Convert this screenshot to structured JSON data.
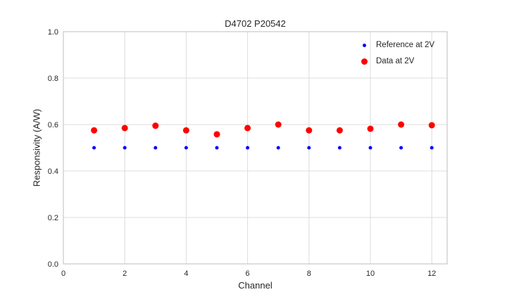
{
  "chart_data": {
    "type": "scatter",
    "title": "D4702 P20542",
    "xlabel": "Channel",
    "ylabel": "Responsivity (A/W)",
    "xlim": [
      0,
      12.5
    ],
    "ylim": [
      0,
      1.0
    ],
    "grid": true,
    "legend_position": "upper right",
    "xtick_values": [
      0,
      2,
      4,
      6,
      8,
      10,
      12
    ],
    "xtick_labels": [
      "0",
      "2",
      "4",
      "6",
      "8",
      "10",
      "12"
    ],
    "ytick_values": [
      0,
      0.2,
      0.4,
      0.6,
      0.8,
      1.0
    ],
    "ytick_labels": [
      "0.0",
      "0.2",
      "0.4",
      "0.6",
      "0.8",
      "1.0"
    ],
    "x": [
      1,
      2,
      3,
      4,
      5,
      6,
      7,
      8,
      9,
      10,
      11,
      12
    ],
    "series": [
      {
        "name": "Reference at 2V",
        "color": "#0000ff",
        "marker_radius": 2.5,
        "values": [
          0.5,
          0.5,
          0.5,
          0.5,
          0.5,
          0.5,
          0.5,
          0.5,
          0.5,
          0.5,
          0.5,
          0.5
        ]
      },
      {
        "name": "Data at 2V",
        "color": "#ff0000",
        "marker_radius": 4.5,
        "values": [
          0.575,
          0.585,
          0.595,
          0.575,
          0.558,
          0.585,
          0.6,
          0.575,
          0.575,
          0.582,
          0.6,
          0.597
        ]
      }
    ],
    "colors": {
      "grid": "#dcdcdc",
      "border": "#c8c8c8",
      "text": "#262626"
    }
  }
}
